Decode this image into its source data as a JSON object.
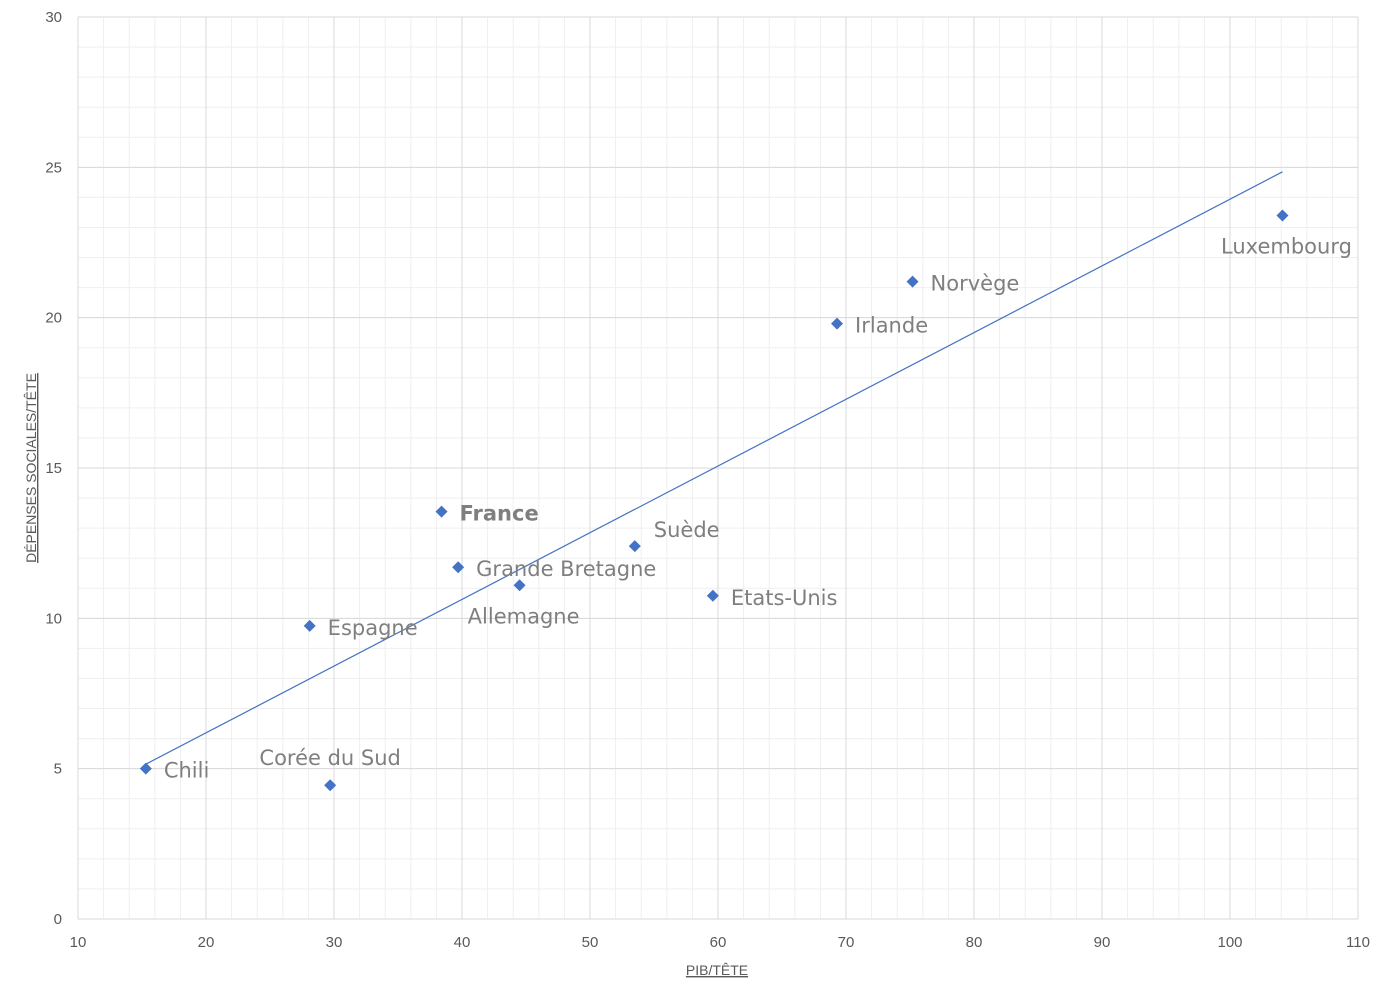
{
  "chart_data": {
    "type": "scatter",
    "title": "",
    "xlabel": "PIB/TÊTE",
    "ylabel": "DÉPENSES SOCIALES/TÊTE",
    "xlim": [
      10,
      110
    ],
    "ylim": [
      0,
      30
    ],
    "x_ticks": [
      10,
      20,
      30,
      40,
      50,
      60,
      70,
      80,
      90,
      100,
      110
    ],
    "y_ticks": [
      0,
      5,
      10,
      15,
      20,
      25,
      30
    ],
    "grid": true,
    "marker": "diamond",
    "marker_color": "#4472C4",
    "label_color": "#7f7f7f",
    "points": [
      {
        "label": "Chili",
        "x": 15.3,
        "y": 5.0,
        "label_pos": "right"
      },
      {
        "label": "Corée du Sud",
        "x": 29.7,
        "y": 4.45,
        "label_pos": "above"
      },
      {
        "label": "Espagne",
        "x": 28.1,
        "y": 9.75,
        "label_pos": "right"
      },
      {
        "label": "France",
        "x": 38.4,
        "y": 13.55,
        "label_pos": "right",
        "bold": true
      },
      {
        "label": "Grande Bretagne",
        "x": 39.7,
        "y": 11.7,
        "label_pos": "right"
      },
      {
        "label": "Allemagne",
        "x": 44.5,
        "y": 11.1,
        "label_pos": "below"
      },
      {
        "label": "Suède",
        "x": 53.5,
        "y": 12.4,
        "label_pos": "above-right"
      },
      {
        "label": "Etats-Unis",
        "x": 59.6,
        "y": 10.75,
        "label_pos": "right"
      },
      {
        "label": "Irlande",
        "x": 69.3,
        "y": 19.8,
        "label_pos": "right"
      },
      {
        "label": "Norvège",
        "x": 75.2,
        "y": 21.2,
        "label_pos": "right"
      },
      {
        "label": "Luxembourg",
        "x": 104.1,
        "y": 23.4,
        "label_pos": "below"
      }
    ],
    "trendline": {
      "type": "linear",
      "color": "#4472C4",
      "x": [
        15.3,
        104.1
      ],
      "y": [
        5.15,
        24.85
      ]
    }
  }
}
